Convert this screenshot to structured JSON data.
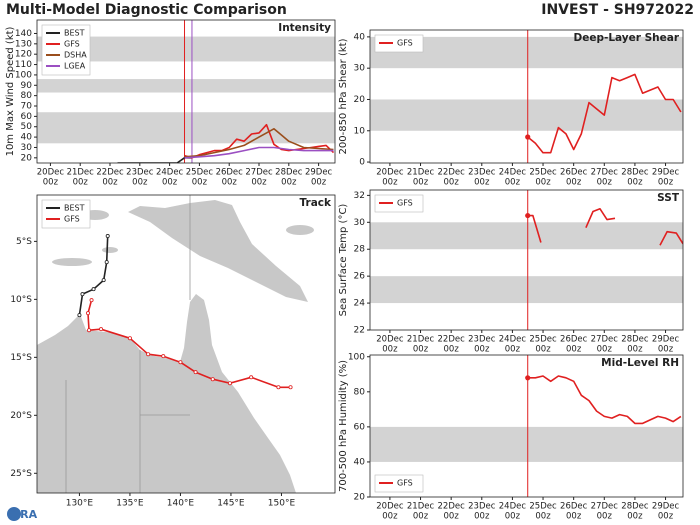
{
  "header": {
    "title": "Multi-Model Diagnostic Comparison",
    "storm": "INVEST - SH972022"
  },
  "footer": {
    "logo": "CIRA"
  },
  "chart_data": [
    {
      "type": "timeseries",
      "title": "Intensity",
      "ylabel": "10m Max Wind Speed (kt)",
      "xlim": [
        -0.45,
        9.55
      ],
      "ylim": [
        15,
        153
      ],
      "yticks": [
        20,
        30,
        40,
        50,
        60,
        70,
        80,
        90,
        100,
        110,
        120,
        130,
        140
      ],
      "xticks": [
        {
          "value": 0,
          "label": [
            "20Dec",
            "00z"
          ]
        },
        {
          "value": 1,
          "label": [
            "21Dec",
            "00z"
          ]
        },
        {
          "value": 2,
          "label": [
            "22Dec",
            "00z"
          ]
        },
        {
          "value": 3,
          "label": [
            "23Dec",
            "00z"
          ]
        },
        {
          "value": 4,
          "label": [
            "24Dec",
            "00z"
          ]
        },
        {
          "value": 5,
          "label": [
            "25Dec",
            "00z"
          ]
        },
        {
          "value": 6,
          "label": [
            "26Dec",
            "00z"
          ]
        },
        {
          "value": 7,
          "label": [
            "27Dec",
            "00z"
          ]
        },
        {
          "value": 8,
          "label": [
            "28Dec",
            "00z"
          ]
        },
        {
          "value": 9,
          "label": [
            "29Dec",
            "00z"
          ]
        }
      ],
      "bands": [
        [
          34,
          64
        ],
        [
          83,
          96
        ],
        [
          113,
          137
        ]
      ],
      "band_color": "#d3d3d3",
      "vlines": [
        {
          "x": 4.5,
          "color": "#e02020"
        },
        {
          "x": 4.75,
          "color": "#9b4fc2"
        }
      ],
      "legend": "upper left",
      "series": [
        {
          "name": "BEST",
          "color": "#222222",
          "x": [
            2.25,
            3,
            3.5,
            4,
            4.25,
            4.5,
            4.75
          ],
          "values": [
            15,
            15,
            15,
            15,
            15,
            20,
            20
          ]
        },
        {
          "name": "GFS",
          "color": "#e02020",
          "x": [
            4.5,
            4.75,
            5,
            5.25,
            5.5,
            5.75,
            6,
            6.25,
            6.5,
            6.75,
            7,
            7.25,
            7.5,
            7.75,
            8,
            8.25,
            8.5,
            8.75,
            9,
            9.25,
            9.5
          ],
          "values": [
            22,
            20,
            23,
            25,
            27,
            27,
            30,
            38,
            36,
            43,
            44,
            52,
            33,
            28,
            27,
            28,
            29,
            30,
            31,
            32,
            25
          ]
        },
        {
          "name": "DSHA",
          "color": "#9a4e1c",
          "x": [
            4.5,
            5,
            5.5,
            6,
            6.5,
            7,
            7.25,
            7.5,
            7.75,
            8,
            8.5,
            9,
            9.5
          ],
          "values": [
            21,
            22,
            25,
            28,
            32,
            40,
            44,
            48,
            42,
            36,
            30,
            29,
            28
          ]
        },
        {
          "name": "LGEA",
          "color": "#9b4fc2",
          "x": [
            4.5,
            5,
            5.5,
            6,
            6.5,
            7,
            7.5,
            8,
            8.5,
            9,
            9.5
          ],
          "values": [
            20,
            21,
            22,
            24,
            27,
            30,
            30,
            28,
            27,
            27,
            27
          ]
        }
      ]
    },
    {
      "type": "map",
      "title": "Track",
      "xlim": [
        125.8,
        155.3
      ],
      "ylim": [
        -26.7,
        -1.0
      ],
      "xticks": [
        {
          "value": 130,
          "label": "130°E"
        },
        {
          "value": 135,
          "label": "135°E"
        },
        {
          "value": 140,
          "label": "140°E"
        },
        {
          "value": 145,
          "label": "145°E"
        },
        {
          "value": 150,
          "label": "150°E"
        }
      ],
      "yticks": [
        {
          "value": -5,
          "label": "5°S"
        },
        {
          "value": -10,
          "label": "10°S"
        },
        {
          "value": -15,
          "label": "15°S"
        },
        {
          "value": -20,
          "label": "20°S"
        },
        {
          "value": -25,
          "label": "25°S"
        }
      ],
      "legend": "upper left",
      "series": [
        {
          "name": "BEST",
          "color": "#222222",
          "lon": [
            132.8,
            132.7,
            132.4,
            131.4,
            130.3,
            130.0
          ],
          "lat": [
            -4.54,
            -6.79,
            -8.34,
            -9.12,
            -9.55,
            -11.36
          ]
        },
        {
          "name": "GFS",
          "color": "#e02020",
          "lon": [
            131.2,
            130.85,
            130.95,
            132.14,
            135.0,
            136.8,
            138.3,
            140.0,
            141.5,
            143.2,
            144.9,
            147.0,
            149.7,
            150.9
          ],
          "lat": [
            -10.07,
            -11.19,
            -12.66,
            -12.57,
            -13.35,
            -14.73,
            -14.9,
            -15.42,
            -16.28,
            -16.89,
            -17.23,
            -16.72,
            -17.58,
            -17.58
          ]
        }
      ]
    },
    {
      "type": "timeseries",
      "title": "Deep-Layer Shear",
      "ylabel": "200-850 hPa Shear (kt)",
      "xlim": [
        -0.65,
        9.57
      ],
      "ylim": [
        -0.3,
        42.2
      ],
      "yticks": [
        0,
        10,
        20,
        30,
        40
      ],
      "xticks": [
        {
          "value": 0,
          "label": [
            "20Dec",
            "00z"
          ]
        },
        {
          "value": 1,
          "label": [
            "21Dec",
            "00z"
          ]
        },
        {
          "value": 2,
          "label": [
            "22Dec",
            "00z"
          ]
        },
        {
          "value": 3,
          "label": [
            "23Dec",
            "00z"
          ]
        },
        {
          "value": 4,
          "label": [
            "24Dec",
            "00z"
          ]
        },
        {
          "value": 5,
          "label": [
            "25Dec",
            "00z"
          ]
        },
        {
          "value": 6,
          "label": [
            "26Dec",
            "00z"
          ]
        },
        {
          "value": 7,
          "label": [
            "27Dec",
            "00z"
          ]
        },
        {
          "value": 8,
          "label": [
            "28Dec",
            "00z"
          ]
        },
        {
          "value": 9,
          "label": [
            "29Dec",
            "00z"
          ]
        }
      ],
      "bands": [
        [
          10,
          20
        ],
        [
          30,
          40
        ]
      ],
      "band_color": "#d3d3d3",
      "vlines": [
        {
          "x": 4.5,
          "color": "#e02020"
        }
      ],
      "legend": "upper left",
      "series": [
        {
          "name": "GFS",
          "color": "#e02020",
          "start_dot": true,
          "x": [
            4.5,
            4.75,
            5,
            5.25,
            5.5,
            5.75,
            6,
            6.25,
            6.5,
            6.75,
            7,
            7.25,
            7.5,
            7.75,
            8,
            8.25,
            8.5,
            8.75,
            9,
            9.25,
            9.5
          ],
          "values": [
            8,
            6,
            3,
            3,
            11,
            9,
            4,
            9,
            19,
            17,
            15,
            27,
            26,
            27,
            28,
            22,
            23,
            24,
            20,
            20,
            16
          ]
        }
      ]
    },
    {
      "type": "timeseries",
      "title": "SST",
      "ylabel": "Sea Surface Temp (°C)",
      "xlim": [
        -0.65,
        9.57
      ],
      "ylim": [
        22,
        32.4
      ],
      "yticks": [
        22,
        24,
        26,
        28,
        30,
        32
      ],
      "xticks": [
        {
          "value": 0,
          "label": [
            "20Dec",
            "00z"
          ]
        },
        {
          "value": 1,
          "label": [
            "21Dec",
            "00z"
          ]
        },
        {
          "value": 2,
          "label": [
            "22Dec",
            "00z"
          ]
        },
        {
          "value": 3,
          "label": [
            "23Dec",
            "00z"
          ]
        },
        {
          "value": 4,
          "label": [
            "24Dec",
            "00z"
          ]
        },
        {
          "value": 5,
          "label": [
            "25Dec",
            "00z"
          ]
        },
        {
          "value": 6,
          "label": [
            "26Dec",
            "00z"
          ]
        },
        {
          "value": 7,
          "label": [
            "27Dec",
            "00z"
          ]
        },
        {
          "value": 8,
          "label": [
            "28Dec",
            "00z"
          ]
        },
        {
          "value": 9,
          "label": [
            "29Dec",
            "00z"
          ]
        }
      ],
      "bands": [
        [
          24,
          26
        ],
        [
          28,
          30
        ]
      ],
      "band_color": "#d3d3d3",
      "vlines": [
        {
          "x": 4.5,
          "color": "#e02020"
        }
      ],
      "legend": "upper left",
      "series": [
        {
          "name": "GFS",
          "color": "#e02020",
          "start_dot": true,
          "x": [
            4.5,
            4.67,
            4.93,
            null,
            6.4,
            6.63,
            6.86,
            7.09,
            7.35,
            null,
            8.82,
            9.05,
            9.35,
            9.57
          ],
          "values": [
            30.5,
            30.5,
            28.5,
            null,
            29.6,
            30.8,
            31.0,
            30.2,
            30.3,
            null,
            28.3,
            29.3,
            29.2,
            28.4
          ]
        }
      ]
    },
    {
      "type": "timeseries",
      "title": "Mid-Level RH",
      "ylabel": "700-500 hPa Humidity (%)",
      "xlim": [
        -0.65,
        9.57
      ],
      "ylim": [
        20,
        101
      ],
      "yticks": [
        20,
        40,
        60,
        80,
        100
      ],
      "xticks": [
        {
          "value": 0,
          "label": [
            "20Dec",
            "00z"
          ]
        },
        {
          "value": 1,
          "label": [
            "21Dec",
            "00z"
          ]
        },
        {
          "value": 2,
          "label": [
            "22Dec",
            "00z"
          ]
        },
        {
          "value": 3,
          "label": [
            "23Dec",
            "00z"
          ]
        },
        {
          "value": 4,
          "label": [
            "24Dec",
            "00z"
          ]
        },
        {
          "value": 5,
          "label": [
            "25Dec",
            "00z"
          ]
        },
        {
          "value": 6,
          "label": [
            "26Dec",
            "00z"
          ]
        },
        {
          "value": 7,
          "label": [
            "27Dec",
            "00z"
          ]
        },
        {
          "value": 8,
          "label": [
            "28Dec",
            "00z"
          ]
        },
        {
          "value": 9,
          "label": [
            "29Dec",
            "00z"
          ]
        }
      ],
      "bands": [
        [
          40,
          60
        ]
      ],
      "band_color": "#d3d3d3",
      "vlines": [
        {
          "x": 4.5,
          "color": "#e02020"
        }
      ],
      "legend": "lower left",
      "series": [
        {
          "name": "GFS",
          "color": "#e02020",
          "start_dot": true,
          "x": [
            4.5,
            4.75,
            5,
            5.25,
            5.5,
            5.75,
            6,
            6.25,
            6.5,
            6.75,
            7,
            7.25,
            7.5,
            7.75,
            8,
            8.25,
            8.5,
            8.75,
            9,
            9.25,
            9.5
          ],
          "values": [
            88,
            88,
            89,
            86,
            89,
            88,
            86,
            78,
            75,
            69,
            66,
            65,
            67,
            66,
            62,
            62,
            64,
            66,
            65,
            63,
            66
          ]
        }
      ]
    }
  ]
}
